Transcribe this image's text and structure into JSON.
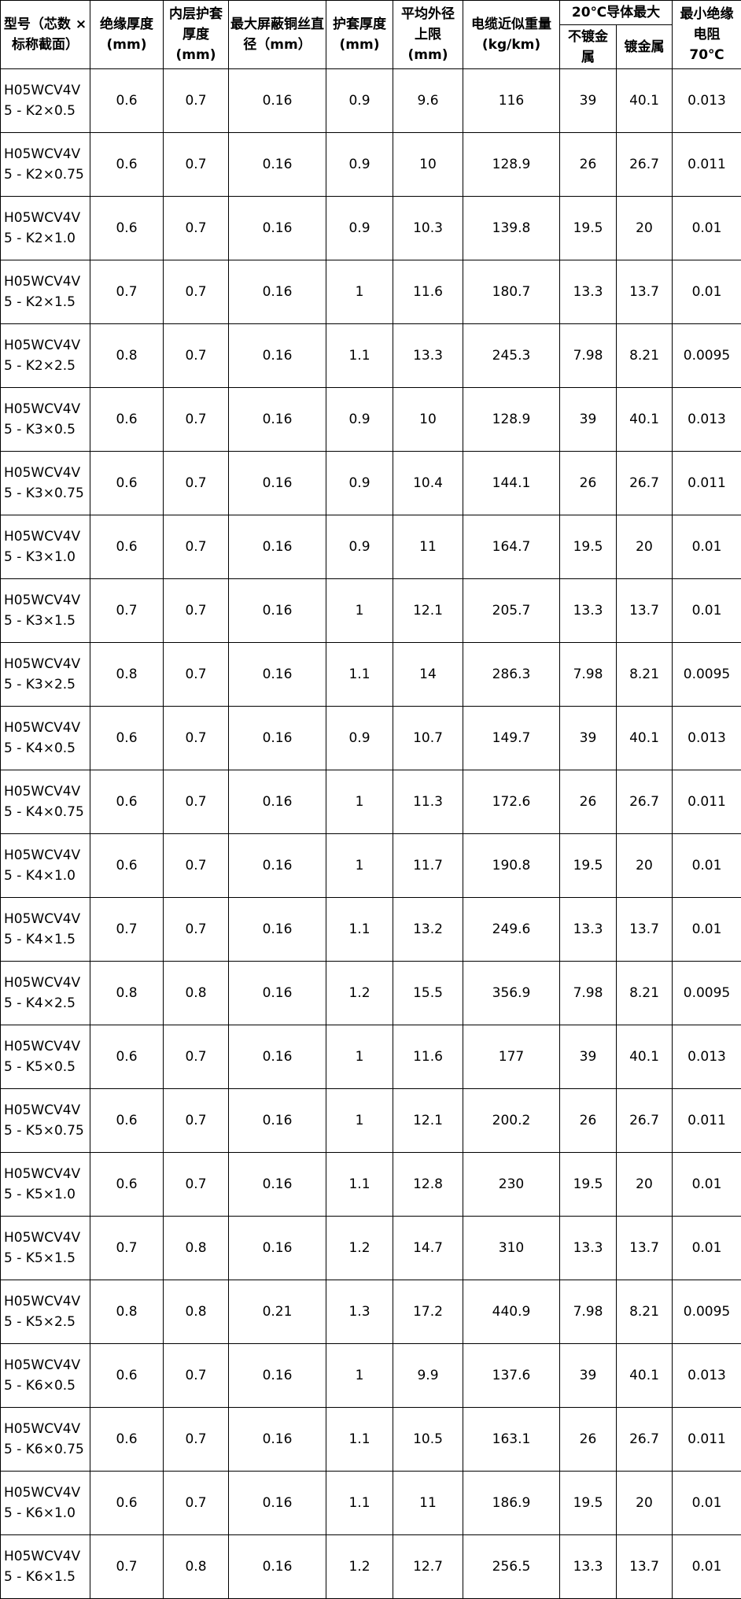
{
  "headers": {
    "model": "型号（芯数 × 标称截面）",
    "insulation": "绝缘厚度 (mm)",
    "inner_sheath": "内层护套厚度 (mm)",
    "shield_wire": "最大屏蔽铜丝直径（mm）",
    "sheath": "护套厚度 (mm)",
    "outer_dia": "平均外径上限 (mm)",
    "weight": "电缆近似重量 (kg/km)",
    "conductor_group": "20℃导体最大",
    "plain": "不镀金属",
    "plated": "镀金属",
    "insul_res": "最小绝缘电阻 70℃"
  },
  "rows": [
    [
      "H05WCV4V\n5 - K2×0.5",
      "0.6",
      "0.7",
      "0.16",
      "0.9",
      "9.6",
      "116",
      "39",
      "40.1",
      "0.013"
    ],
    [
      "H05WCV4V\n5 - K2×0.75",
      "0.6",
      "0.7",
      "0.16",
      "0.9",
      "10",
      "128.9",
      "26",
      "26.7",
      "0.011"
    ],
    [
      "H05WCV4V\n5 - K2×1.0",
      "0.6",
      "0.7",
      "0.16",
      "0.9",
      "10.3",
      "139.8",
      "19.5",
      "20",
      "0.01"
    ],
    [
      "H05WCV4V\n5 - K2×1.5",
      "0.7",
      "0.7",
      "0.16",
      "1",
      "11.6",
      "180.7",
      "13.3",
      "13.7",
      "0.01"
    ],
    [
      "H05WCV4V\n5 - K2×2.5",
      "0.8",
      "0.7",
      "0.16",
      "1.1",
      "13.3",
      "245.3",
      "7.98",
      "8.21",
      "0.0095"
    ],
    [
      "H05WCV4V\n5 - K3×0.5",
      "0.6",
      "0.7",
      "0.16",
      "0.9",
      "10",
      "128.9",
      "39",
      "40.1",
      "0.013"
    ],
    [
      "H05WCV4V\n5 - K3×0.75",
      "0.6",
      "0.7",
      "0.16",
      "0.9",
      "10.4",
      "144.1",
      "26",
      "26.7",
      "0.011"
    ],
    [
      "H05WCV4V\n5 - K3×1.0",
      "0.6",
      "0.7",
      "0.16",
      "0.9",
      "11",
      "164.7",
      "19.5",
      "20",
      "0.01"
    ],
    [
      "H05WCV4V\n5 - K3×1.5",
      "0.7",
      "0.7",
      "0.16",
      "1",
      "12.1",
      "205.7",
      "13.3",
      "13.7",
      "0.01"
    ],
    [
      "H05WCV4V\n5 - K3×2.5",
      "0.8",
      "0.7",
      "0.16",
      "1.1",
      "14",
      "286.3",
      "7.98",
      "8.21",
      "0.0095"
    ],
    [
      "H05WCV4V\n5 - K4×0.5",
      "0.6",
      "0.7",
      "0.16",
      "0.9",
      "10.7",
      "149.7",
      "39",
      "40.1",
      "0.013"
    ],
    [
      "H05WCV4V\n5 - K4×0.75",
      "0.6",
      "0.7",
      "0.16",
      "1",
      "11.3",
      "172.6",
      "26",
      "26.7",
      "0.011"
    ],
    [
      "H05WCV4V\n5 - K4×1.0",
      "0.6",
      "0.7",
      "0.16",
      "1",
      "11.7",
      "190.8",
      "19.5",
      "20",
      "0.01"
    ],
    [
      "H05WCV4V\n5 - K4×1.5",
      "0.7",
      "0.7",
      "0.16",
      "1.1",
      "13.2",
      "249.6",
      "13.3",
      "13.7",
      "0.01"
    ],
    [
      "H05WCV4V\n5 - K4×2.5",
      "0.8",
      "0.8",
      "0.16",
      "1.2",
      "15.5",
      "356.9",
      "7.98",
      "8.21",
      "0.0095"
    ],
    [
      "H05WCV4V\n5 - K5×0.5",
      "0.6",
      "0.7",
      "0.16",
      "1",
      "11.6",
      "177",
      "39",
      "40.1",
      "0.013"
    ],
    [
      "H05WCV4V\n5 - K5×0.75",
      "0.6",
      "0.7",
      "0.16",
      "1",
      "12.1",
      "200.2",
      "26",
      "26.7",
      "0.011"
    ],
    [
      "H05WCV4V\n5 - K5×1.0",
      "0.6",
      "0.7",
      "0.16",
      "1.1",
      "12.8",
      "230",
      "19.5",
      "20",
      "0.01"
    ],
    [
      "H05WCV4V\n5 - K5×1.5",
      "0.7",
      "0.8",
      "0.16",
      "1.2",
      "14.7",
      "310",
      "13.3",
      "13.7",
      "0.01"
    ],
    [
      "H05WCV4V\n5 - K5×2.5",
      "0.8",
      "0.8",
      "0.21",
      "1.3",
      "17.2",
      "440.9",
      "7.98",
      "8.21",
      "0.0095"
    ],
    [
      "H05WCV4V\n5 - K6×0.5",
      "0.6",
      "0.7",
      "0.16",
      "1",
      "9.9",
      "137.6",
      "39",
      "40.1",
      "0.013"
    ],
    [
      "H05WCV4V\n5 - K6×0.75",
      "0.6",
      "0.7",
      "0.16",
      "1.1",
      "10.5",
      "163.1",
      "26",
      "26.7",
      "0.011"
    ],
    [
      "H05WCV4V\n5 - K6×1.0",
      "0.6",
      "0.7",
      "0.16",
      "1.1",
      "11",
      "186.9",
      "19.5",
      "20",
      "0.01"
    ],
    [
      "H05WCV4V\n5 - K6×1.5",
      "0.7",
      "0.8",
      "0.16",
      "1.2",
      "12.7",
      "256.5",
      "13.3",
      "13.7",
      "0.01"
    ]
  ]
}
